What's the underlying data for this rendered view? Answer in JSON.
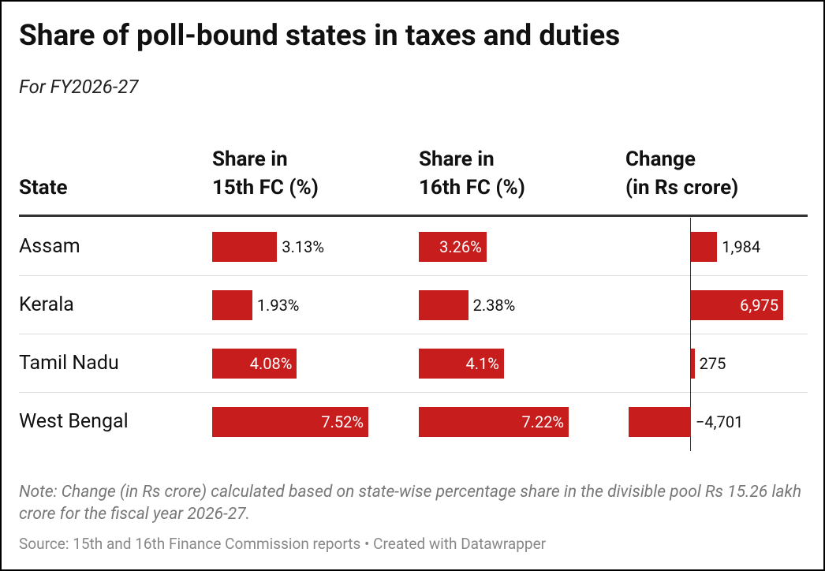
{
  "header": {
    "title": "Share of poll-bound states in taxes and duties",
    "subtitle": "For FY2026-27"
  },
  "table": {
    "state_heading": "State",
    "states": [
      "Assam",
      "Kerala",
      "Tamil Nadu",
      "West Bengal"
    ],
    "bar_color": "#c71e1d",
    "columns": [
      {
        "heading": [
          "Share in",
          "15th FC (%)"
        ],
        "values": [
          3.13,
          1.93,
          4.08,
          7.52
        ],
        "value_labels": [
          "3.13%",
          "1.93%",
          "4.08%",
          "7.52%"
        ]
      },
      {
        "heading": [
          "Share in",
          "16th FC (%)"
        ],
        "values": [
          3.26,
          2.38,
          4.1,
          7.22
        ],
        "value_labels": [
          "3.26%",
          "2.38%",
          "4.1%",
          "7.22%"
        ]
      },
      {
        "heading": [
          "Change",
          "(in Rs crore)"
        ],
        "values": [
          1984,
          6975,
          275,
          -4701
        ],
        "value_labels": [
          "1,984",
          "6,975",
          "275",
          "−4,701"
        ]
      }
    ]
  },
  "footer": {
    "note": "Note: Change (in Rs crore) calculated based on state-wise percentage share in the divisible pool Rs 15.26 lakh crore for the fiscal year 2026-27.",
    "source": "Source: 15th and 16th Finance Commission reports • Created with Datawrapper"
  }
}
